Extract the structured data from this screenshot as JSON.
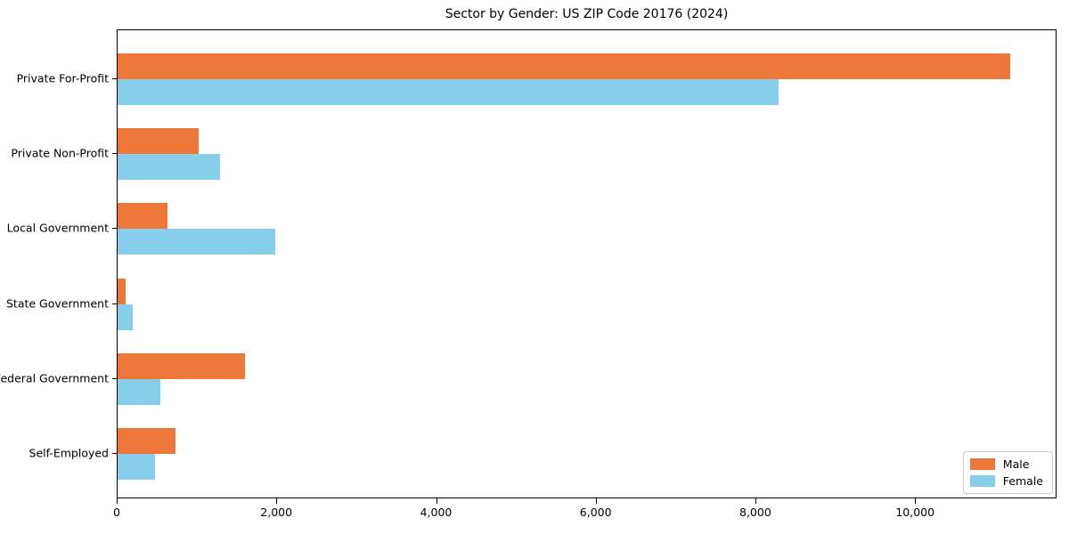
{
  "chart_data": {
    "type": "bar",
    "orientation": "horizontal",
    "title": "Sector by Gender: US ZIP Code 20176 (2024)",
    "categories": [
      "Private For-Profit",
      "Private Non-Profit",
      "Local Government",
      "State Government",
      "Federal Government",
      "Self-Employed"
    ],
    "series": [
      {
        "name": "Male",
        "color": "#ec7738",
        "values": [
          11180,
          1010,
          620,
          100,
          1590,
          720
        ]
      },
      {
        "name": "Female",
        "color": "#87ceeb",
        "values": [
          8280,
          1280,
          1970,
          190,
          540,
          470
        ]
      }
    ],
    "xlabel": "",
    "ylabel": "",
    "xlim": [
      0,
      11750
    ],
    "xticks": {
      "values": [
        0,
        2000,
        4000,
        6000,
        8000,
        10000
      ],
      "labels": [
        "0",
        "2,000",
        "4,000",
        "6,000",
        "8,000",
        "10,000"
      ]
    },
    "grid": false,
    "legend_position": "lower right",
    "plot_background": "#ffffff",
    "spine_color": "#000000"
  }
}
